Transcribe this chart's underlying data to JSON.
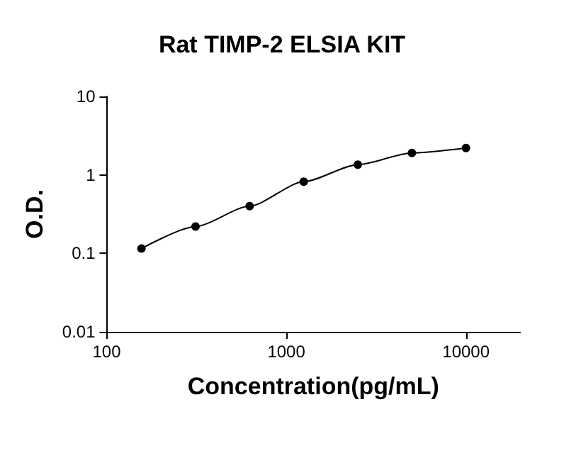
{
  "chart_data": {
    "type": "line",
    "title": "Rat TIMP-2 ELSIA KIT",
    "xlabel": "Concentration(pg/mL)",
    "ylabel": "O.D.",
    "x": [
      156.25,
      312.5,
      625,
      1250,
      2500,
      5000,
      10000
    ],
    "series": [
      {
        "color": "#000000",
        "values": [
          0.115,
          0.22,
          0.4,
          0.82,
          1.35,
          1.9,
          2.2
        ]
      }
    ],
    "xlim": [
      100,
      20000
    ],
    "xticks": [
      100,
      1000,
      10000
    ],
    "ylim": [
      0.01,
      10
    ],
    "yticks": [
      0.01,
      0.1,
      1,
      10
    ],
    "log": "xy",
    "grid": false,
    "marker": "circle",
    "line_style": "solid"
  }
}
